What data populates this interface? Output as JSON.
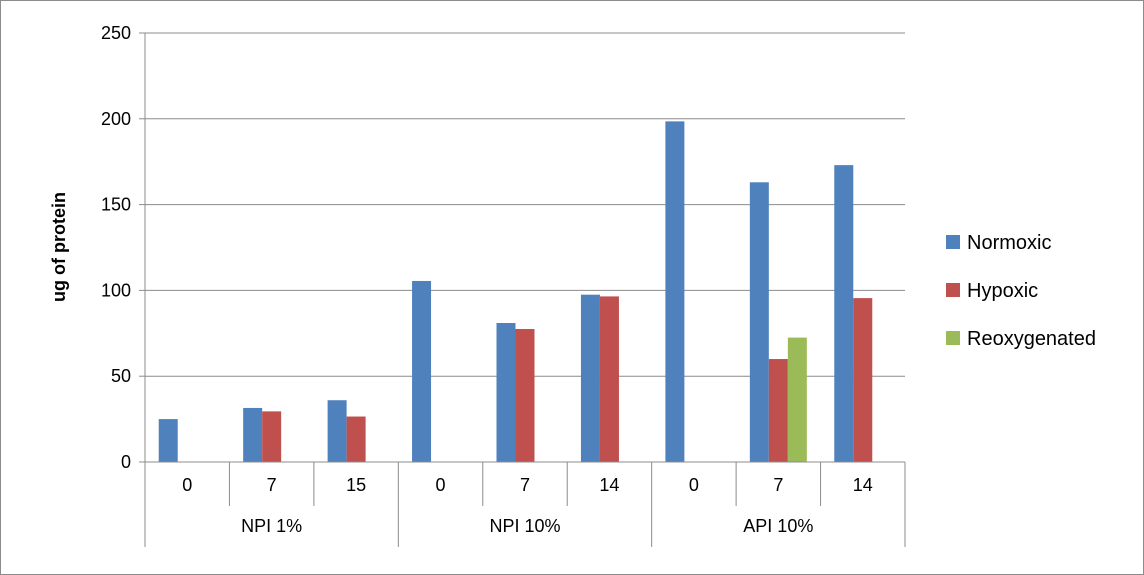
{
  "chart_data": {
    "type": "bar",
    "groups": [
      {
        "label": "NPI 1%",
        "categories": [
          "0",
          "7",
          "15"
        ]
      },
      {
        "label": "NPI 10%",
        "categories": [
          "0",
          "7",
          "14"
        ]
      },
      {
        "label": "API 10%",
        "categories": [
          "0",
          "7",
          "14"
        ]
      }
    ],
    "categories": [
      "0",
      "7",
      "15",
      "0",
      "7",
      "14",
      "0",
      "7",
      "14"
    ],
    "series": [
      {
        "name": "Normoxic",
        "color": "#4F81BD",
        "values": [
          25,
          31.5,
          36,
          105.5,
          81,
          97.5,
          198.5,
          163,
          173
        ]
      },
      {
        "name": "Hypoxic",
        "color": "#C0504D",
        "values": [
          null,
          29.5,
          26.5,
          null,
          77.5,
          96.5,
          null,
          60,
          95.5
        ]
      },
      {
        "name": "Reoxygenated",
        "color": "#9BBB59",
        "values": [
          null,
          null,
          null,
          null,
          null,
          null,
          null,
          72.5,
          null
        ]
      }
    ],
    "title": "",
    "xlabel": "",
    "ylabel": "ug of protein",
    "ylim": [
      0,
      250
    ],
    "yticks": [
      0,
      50,
      100,
      150,
      200,
      250
    ],
    "grid": true,
    "legend_position": "right"
  }
}
